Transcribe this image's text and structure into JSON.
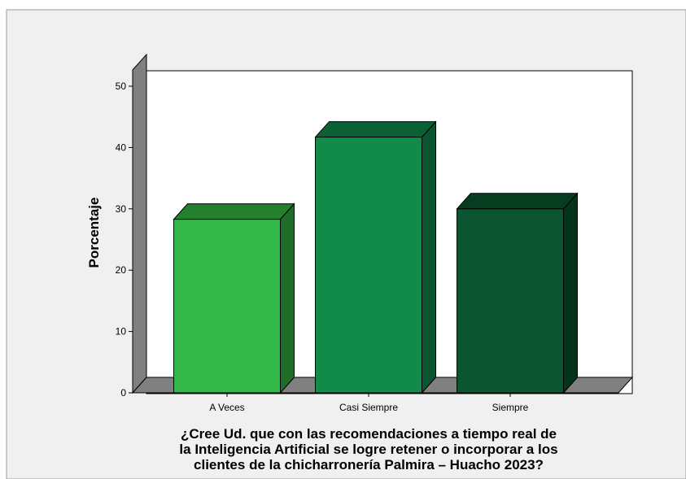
{
  "chart_data": {
    "type": "bar",
    "categories": [
      "A Veces",
      "Casi Siempre",
      "Siempre"
    ],
    "values": [
      28.3,
      41.7,
      30.0
    ],
    "ylabel": "Porcentaje",
    "xlabel_lines": [
      "¿Cree Ud. que con las recomendaciones a tiempo real de",
      "la Inteligencia Artificial se logre retener o incorporar a los",
      "clientes de la chicharronería Palmira – Huacho 2023?"
    ],
    "ylim": [
      0,
      50
    ],
    "yticks": [
      0,
      10,
      20,
      30,
      40,
      50
    ],
    "grid": false,
    "three_d": true,
    "colors": [
      {
        "front": "#33b84a",
        "top": "#24802f",
        "side": "#1f6d28"
      },
      {
        "front": "#118a4a",
        "top": "#0b6034",
        "side": "#0a5430"
      },
      {
        "front": "#0b5630",
        "top": "#063d21",
        "side": "#05341c"
      }
    ],
    "wall_color": "#808080",
    "background_color": "#f0f0f0"
  }
}
